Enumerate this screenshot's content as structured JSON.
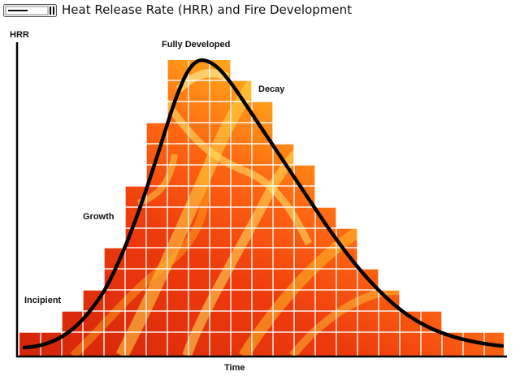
{
  "header": {
    "title": "Heat Release Rate (HRR) and Fire Development"
  },
  "diagram": {
    "y_axis_label": "HRR",
    "x_axis_label": "Time",
    "stages": {
      "incipient": "Incipient",
      "growth": "Growth",
      "fully_developed": "Fully Developed",
      "decay": "Decay"
    },
    "colors": {
      "curve": "#000000",
      "fire_base": "#e8300c",
      "fire_mid": "#ff7a0f",
      "fire_hot": "#ffd21a",
      "grid_lines": "#ffffff"
    }
  }
}
